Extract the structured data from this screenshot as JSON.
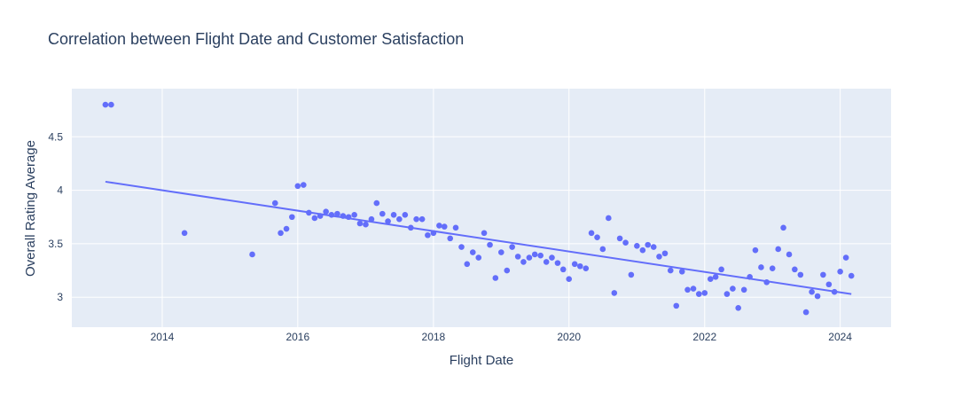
{
  "chart_data": {
    "type": "scatter",
    "title": "Correlation between Flight Date and Customer Satisfaction",
    "xlabel": "Flight Date",
    "ylabel": "Overall Rating Average",
    "xlim": [
      "2012-09-01",
      "2024-10-01"
    ],
    "ylim": [
      2.72,
      4.95
    ],
    "x_ticks": [
      "2014",
      "2016",
      "2018",
      "2020",
      "2022",
      "2024"
    ],
    "y_ticks": [
      "3",
      "3.5",
      "4",
      "4.5"
    ],
    "grid": true,
    "legend": "none",
    "colors": {
      "background": "#e5ecf6",
      "grid": "#ffffff",
      "marker": "#636efa",
      "trendline": "#636efa"
    },
    "series": [
      {
        "x": [
          "2013-03-01",
          "2013-04-01",
          "2014-05-01",
          "2015-05-01",
          "2015-09-01",
          "2015-10-01",
          "2015-11-01",
          "2015-12-01",
          "2016-01-01",
          "2016-02-01",
          "2016-03-01",
          "2016-04-01",
          "2016-05-01",
          "2016-06-01",
          "2016-07-01",
          "2016-08-01",
          "2016-09-01",
          "2016-10-01",
          "2016-11-01",
          "2016-12-01",
          "2017-01-01",
          "2017-02-01",
          "2017-03-01",
          "2017-04-01",
          "2017-05-01",
          "2017-06-01",
          "2017-07-01",
          "2017-08-01",
          "2017-09-01",
          "2017-10-01",
          "2017-11-01",
          "2017-12-01",
          "2018-01-01",
          "2018-02-01",
          "2018-03-01",
          "2018-04-01",
          "2018-05-01",
          "2018-06-01",
          "2018-07-01",
          "2018-08-01",
          "2018-09-01",
          "2018-10-01",
          "2018-11-01",
          "2018-12-01",
          "2019-01-01",
          "2019-02-01",
          "2019-03-01",
          "2019-04-01",
          "2019-05-01",
          "2019-06-01",
          "2019-07-01",
          "2019-08-01",
          "2019-09-01",
          "2019-10-01",
          "2019-11-01",
          "2019-12-01",
          "2020-01-01",
          "2020-02-01",
          "2020-03-01",
          "2020-04-01",
          "2020-05-01",
          "2020-06-01",
          "2020-07-01",
          "2020-08-01",
          "2020-09-01",
          "2020-10-01",
          "2020-11-01",
          "2020-12-01",
          "2021-01-01",
          "2021-02-01",
          "2021-03-01",
          "2021-04-01",
          "2021-05-01",
          "2021-06-01",
          "2021-07-01",
          "2021-08-01",
          "2021-09-01",
          "2021-10-01",
          "2021-11-01",
          "2021-12-01",
          "2022-01-01",
          "2022-02-01",
          "2022-03-01",
          "2022-04-01",
          "2022-05-01",
          "2022-06-01",
          "2022-07-01",
          "2022-08-01",
          "2022-09-01",
          "2022-10-01",
          "2022-11-01",
          "2022-12-01",
          "2023-01-01",
          "2023-02-01",
          "2023-03-01",
          "2023-04-01",
          "2023-05-01",
          "2023-06-01",
          "2023-07-01",
          "2023-08-01",
          "2023-09-01",
          "2023-10-01",
          "2023-11-01",
          "2023-12-01",
          "2024-01-01",
          "2024-02-01",
          "2024-03-01"
        ],
        "y": [
          4.8,
          4.8,
          3.6,
          3.4,
          3.88,
          3.6,
          3.64,
          3.75,
          4.04,
          4.05,
          3.79,
          3.74,
          3.76,
          3.8,
          3.77,
          3.78,
          3.76,
          3.75,
          3.77,
          3.69,
          3.68,
          3.73,
          3.88,
          3.78,
          3.71,
          3.77,
          3.73,
          3.77,
          3.65,
          3.73,
          3.73,
          3.58,
          3.6,
          3.67,
          3.66,
          3.55,
          3.65,
          3.47,
          3.31,
          3.42,
          3.37,
          3.6,
          3.49,
          3.18,
          3.42,
          3.25,
          3.47,
          3.38,
          3.33,
          3.37,
          3.4,
          3.39,
          3.33,
          3.37,
          3.32,
          3.26,
          3.17,
          3.31,
          3.29,
          3.27,
          3.6,
          3.56,
          3.45,
          3.74,
          3.04,
          3.55,
          3.51,
          3.21,
          3.48,
          3.44,
          3.49,
          3.47,
          3.38,
          3.41,
          3.25,
          2.92,
          3.24,
          3.07,
          3.08,
          3.03,
          3.04,
          3.17,
          3.19,
          3.26,
          3.03,
          3.08,
          2.9,
          3.07,
          3.19,
          3.44,
          3.28,
          3.14,
          3.27,
          3.45,
          3.65,
          3.4,
          3.26,
          3.21,
          2.86,
          3.05,
          3.01,
          3.21,
          3.12,
          3.05,
          3.24,
          3.37,
          3.2
        ]
      }
    ],
    "trendline": {
      "x": [
        "2013-03-01",
        "2024-03-01"
      ],
      "y": [
        4.08,
        3.03
      ]
    }
  }
}
